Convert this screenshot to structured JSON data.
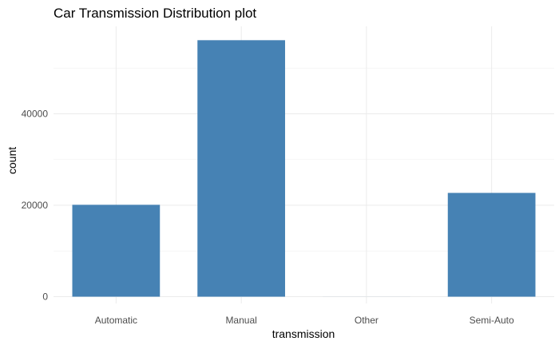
{
  "chart_data": {
    "type": "bar",
    "title": "Car Transmission Distribution plot",
    "xlabel": "transmission",
    "ylabel": "count",
    "categories": [
      "Automatic",
      "Manual",
      "Other",
      "Semi-Auto"
    ],
    "values": [
      20100,
      56100,
      9,
      22700
    ],
    "ylim": [
      0,
      58000
    ],
    "yticks": [
      0,
      20000,
      40000
    ],
    "grid": true,
    "theme": "minimal",
    "bar_color": "#4682B4"
  }
}
